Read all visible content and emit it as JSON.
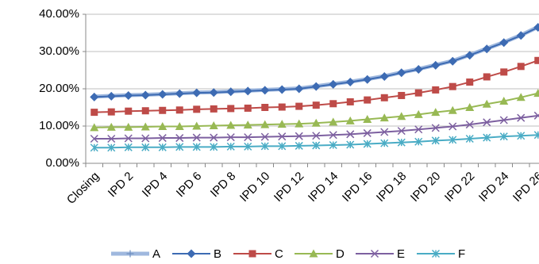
{
  "chart_data": {
    "type": "line",
    "categories": [
      "Closing",
      null,
      "IPD 2",
      null,
      "IPD 4",
      null,
      "IPD 6",
      null,
      "IPD 8",
      null,
      "IPD 10",
      null,
      "IPD 12",
      null,
      "IPD 14",
      null,
      "IPD 16",
      null,
      "IPD 18",
      null,
      "IPD 20",
      null,
      "IPD 22",
      null,
      "IPD 24",
      null,
      "IPD 26"
    ],
    "series": [
      {
        "name": "A",
        "color": "#9fb8de",
        "marker": "plus",
        "values": [
          17.9,
          18.1,
          18.3,
          18.4,
          18.6,
          18.8,
          19.0,
          19.1,
          19.3,
          19.5,
          19.7,
          19.9,
          20.1,
          20.7,
          21.3,
          21.9,
          22.6,
          23.4,
          24.4,
          25.3,
          26.4,
          27.5,
          29.1,
          30.8,
          32.5,
          34.4,
          36.6
        ]
      },
      {
        "name": "B",
        "color": "#3d6bb3",
        "marker": "diamond",
        "values": [
          17.8,
          18.0,
          18.2,
          18.3,
          18.5,
          18.7,
          18.9,
          19.0,
          19.2,
          19.4,
          19.6,
          19.8,
          20.0,
          20.6,
          21.2,
          21.8,
          22.5,
          23.3,
          24.3,
          25.2,
          26.3,
          27.4,
          29.0,
          30.7,
          32.4,
          34.3,
          36.5
        ]
      },
      {
        "name": "C",
        "color": "#be4b48",
        "marker": "square",
        "values": [
          13.7,
          13.8,
          14.0,
          14.1,
          14.2,
          14.3,
          14.5,
          14.6,
          14.7,
          14.8,
          15.0,
          15.1,
          15.3,
          15.6,
          16.0,
          16.5,
          17.0,
          17.6,
          18.2,
          18.9,
          19.7,
          20.6,
          21.8,
          23.2,
          24.5,
          26.0,
          27.6
        ]
      },
      {
        "name": "D",
        "color": "#98b954",
        "marker": "triangle",
        "values": [
          9.6,
          9.7,
          9.7,
          9.8,
          9.9,
          9.9,
          10.0,
          10.1,
          10.2,
          10.3,
          10.4,
          10.5,
          10.6,
          10.8,
          11.1,
          11.4,
          11.8,
          12.2,
          12.6,
          13.1,
          13.7,
          14.2,
          15.0,
          15.9,
          16.7,
          17.7,
          18.8
        ]
      },
      {
        "name": "E",
        "color": "#7d60a0",
        "marker": "cross",
        "values": [
          6.6,
          6.6,
          6.7,
          6.7,
          6.8,
          6.8,
          6.9,
          6.9,
          7.0,
          7.0,
          7.1,
          7.2,
          7.3,
          7.4,
          7.6,
          7.8,
          8.1,
          8.4,
          8.7,
          9.1,
          9.5,
          9.9,
          10.4,
          11.0,
          11.6,
          12.2,
          12.8
        ]
      },
      {
        "name": "F",
        "color": "#4aacc5",
        "marker": "star",
        "values": [
          4.2,
          4.2,
          4.3,
          4.3,
          4.3,
          4.4,
          4.4,
          4.4,
          4.5,
          4.5,
          4.6,
          4.6,
          4.7,
          4.8,
          4.9,
          5.0,
          5.2,
          5.4,
          5.6,
          5.8,
          6.1,
          6.3,
          6.6,
          6.9,
          7.2,
          7.4,
          7.6
        ]
      }
    ],
    "ylim": [
      0,
      40
    ],
    "yticks": [
      {
        "value": 0,
        "label": "0.00%"
      },
      {
        "value": 10,
        "label": "10.00%"
      },
      {
        "value": 20,
        "label": "20.00%"
      },
      {
        "value": 30,
        "label": "30.00%"
      },
      {
        "value": 40,
        "label": "40.00%"
      }
    ],
    "grid": true,
    "legend": "bottom"
  }
}
